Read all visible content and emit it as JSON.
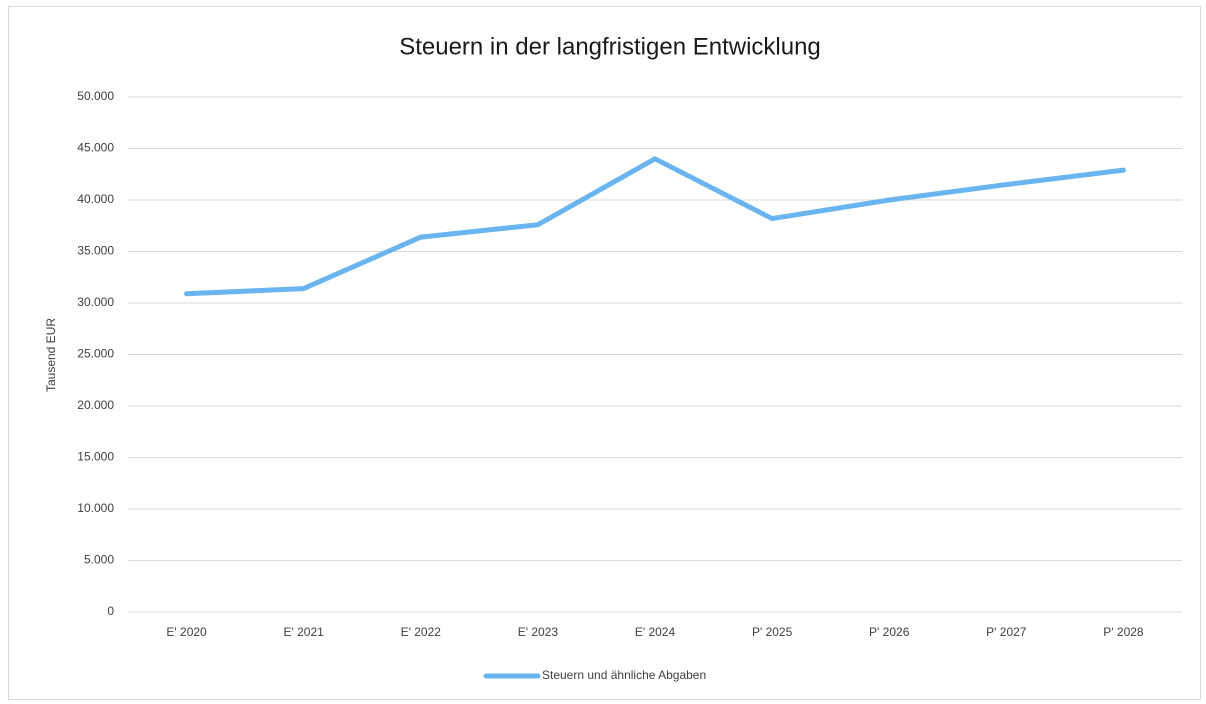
{
  "chart_data": {
    "type": "line",
    "title": "Steuern in der langfristigen Entwicklung",
    "ylabel": "Tausend EUR",
    "categories": [
      "E' 2020",
      "E' 2021",
      "E' 2022",
      "E' 2023",
      "E' 2024",
      "P' 2025",
      "P' 2026",
      "P' 2027",
      "P' 2028"
    ],
    "series": [
      {
        "name": "Steuern und ähnliche Abgaben",
        "color": "#6ab4f0",
        "values": [
          30900,
          31400,
          36400,
          37600,
          44000,
          38200,
          40000,
          41500,
          42900
        ]
      }
    ],
    "ylim": [
      0,
      50000
    ],
    "yticks": [
      0,
      {
        "value": 5000,
        "label": "5.000"
      },
      {
        "value": 10000,
        "label": "10.000"
      },
      {
        "value": 15000,
        "label": "15.000"
      },
      {
        "value": 20000,
        "label": "20.000"
      },
      {
        "value": 25000,
        "label": "25.000"
      },
      {
        "value": 30000,
        "label": "30.000"
      },
      {
        "value": 35000,
        "label": "35.000"
      },
      {
        "value": 40000,
        "label": "40.000"
      },
      {
        "value": 45000,
        "label": "45.000"
      },
      {
        "value": 50000,
        "label": "50.000"
      }
    ],
    "grid": true,
    "legend": "bottom"
  }
}
